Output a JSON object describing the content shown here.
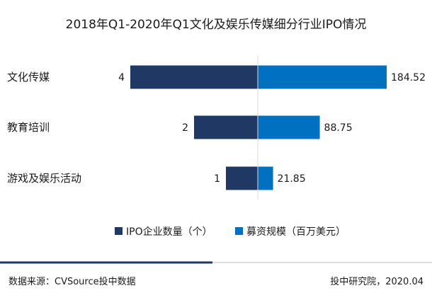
{
  "chart_data": {
    "type": "bar",
    "orientation": "horizontal-diverging",
    "title": "2018年Q1-2020年Q1文化及娱乐传媒细分行业IPO情况",
    "categories": [
      "文化传媒",
      "教育培训",
      "游戏及娱乐活动"
    ],
    "series": [
      {
        "name": "IPO企业数量（个）",
        "values": [
          4,
          2,
          1
        ],
        "color": "#1f3864"
      },
      {
        "name": "募资规模（百万美元）",
        "values": [
          184.52,
          88.75,
          21.85
        ],
        "color": "#0070c0"
      }
    ],
    "legend_position": "bottom",
    "grid": false
  },
  "footer": {
    "source": "数据来源：CVSource投中数据",
    "credit": "投中研究院，2020.04",
    "accent_color": "#1f3864"
  }
}
